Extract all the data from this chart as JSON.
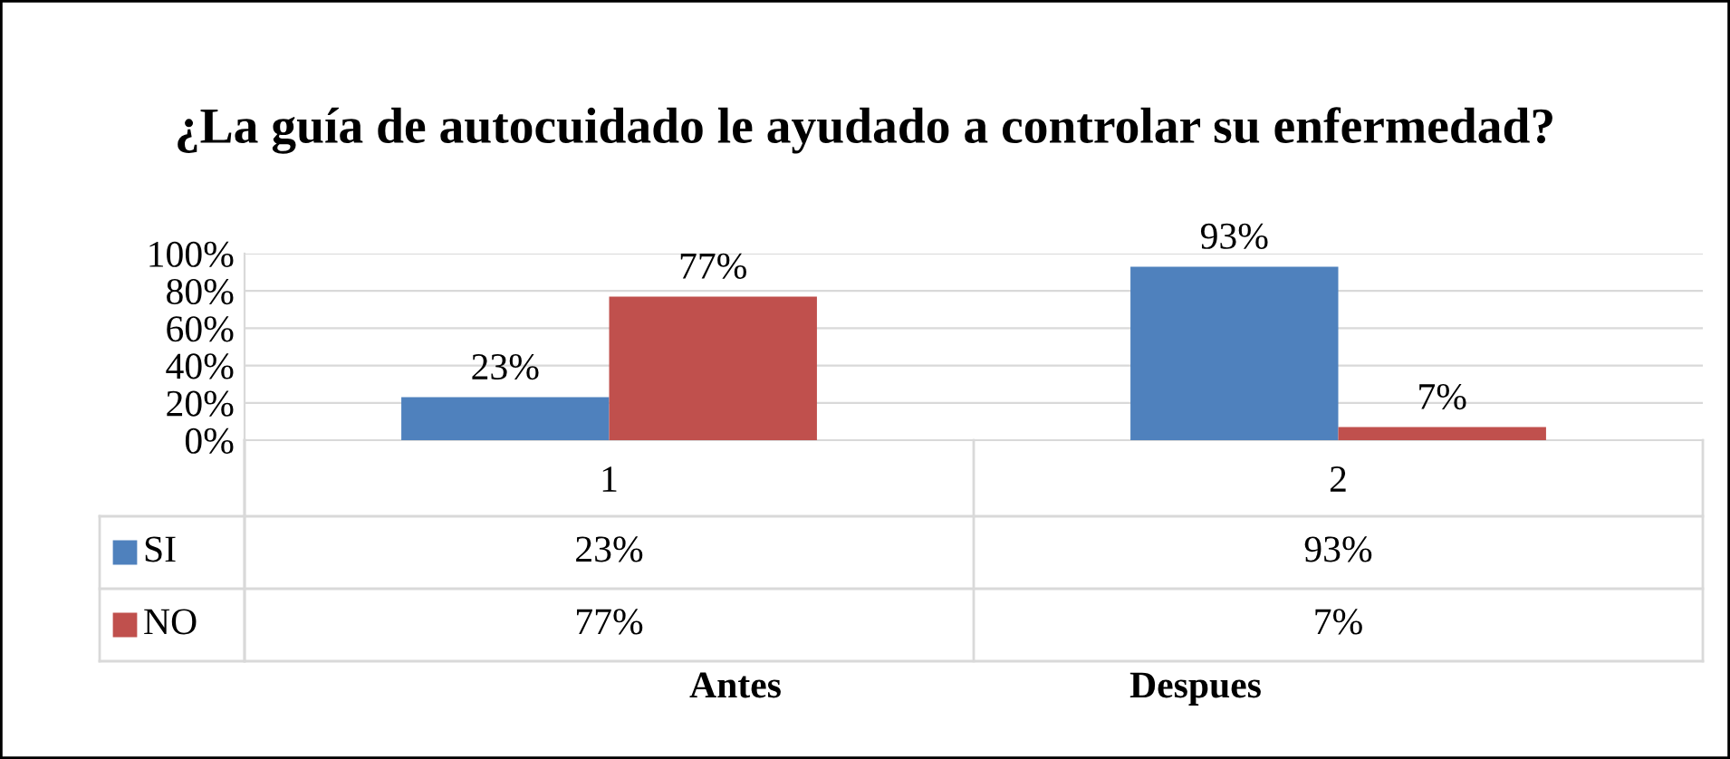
{
  "chart_data": {
    "type": "bar",
    "title": "¿La guía de autocuidado le ayudado a controlar su enfermedad?",
    "categories": [
      "1",
      "2"
    ],
    "series": [
      {
        "name": "SI",
        "color": "#4f81bd",
        "values": [
          23,
          93
        ],
        "value_labels": [
          "23%",
          "93%"
        ]
      },
      {
        "name": "NO",
        "color": "#c0504d",
        "values": [
          77,
          7
        ],
        "value_labels": [
          "77%",
          "7%"
        ]
      }
    ],
    "legend": "bottom left",
    "ylim": [
      0,
      100
    ],
    "yticks": [
      {
        "value": 0,
        "label": "0%"
      },
      {
        "value": 20,
        "label": "20%"
      },
      {
        "value": 40,
        "label": "40%"
      },
      {
        "value": 60,
        "label": "60%"
      },
      {
        "value": 80,
        "label": "80%"
      },
      {
        "value": 100,
        "label": "100%"
      }
    ],
    "grid": "y",
    "data_labels": true,
    "annotations": [
      "Antes",
      "Despues"
    ]
  }
}
